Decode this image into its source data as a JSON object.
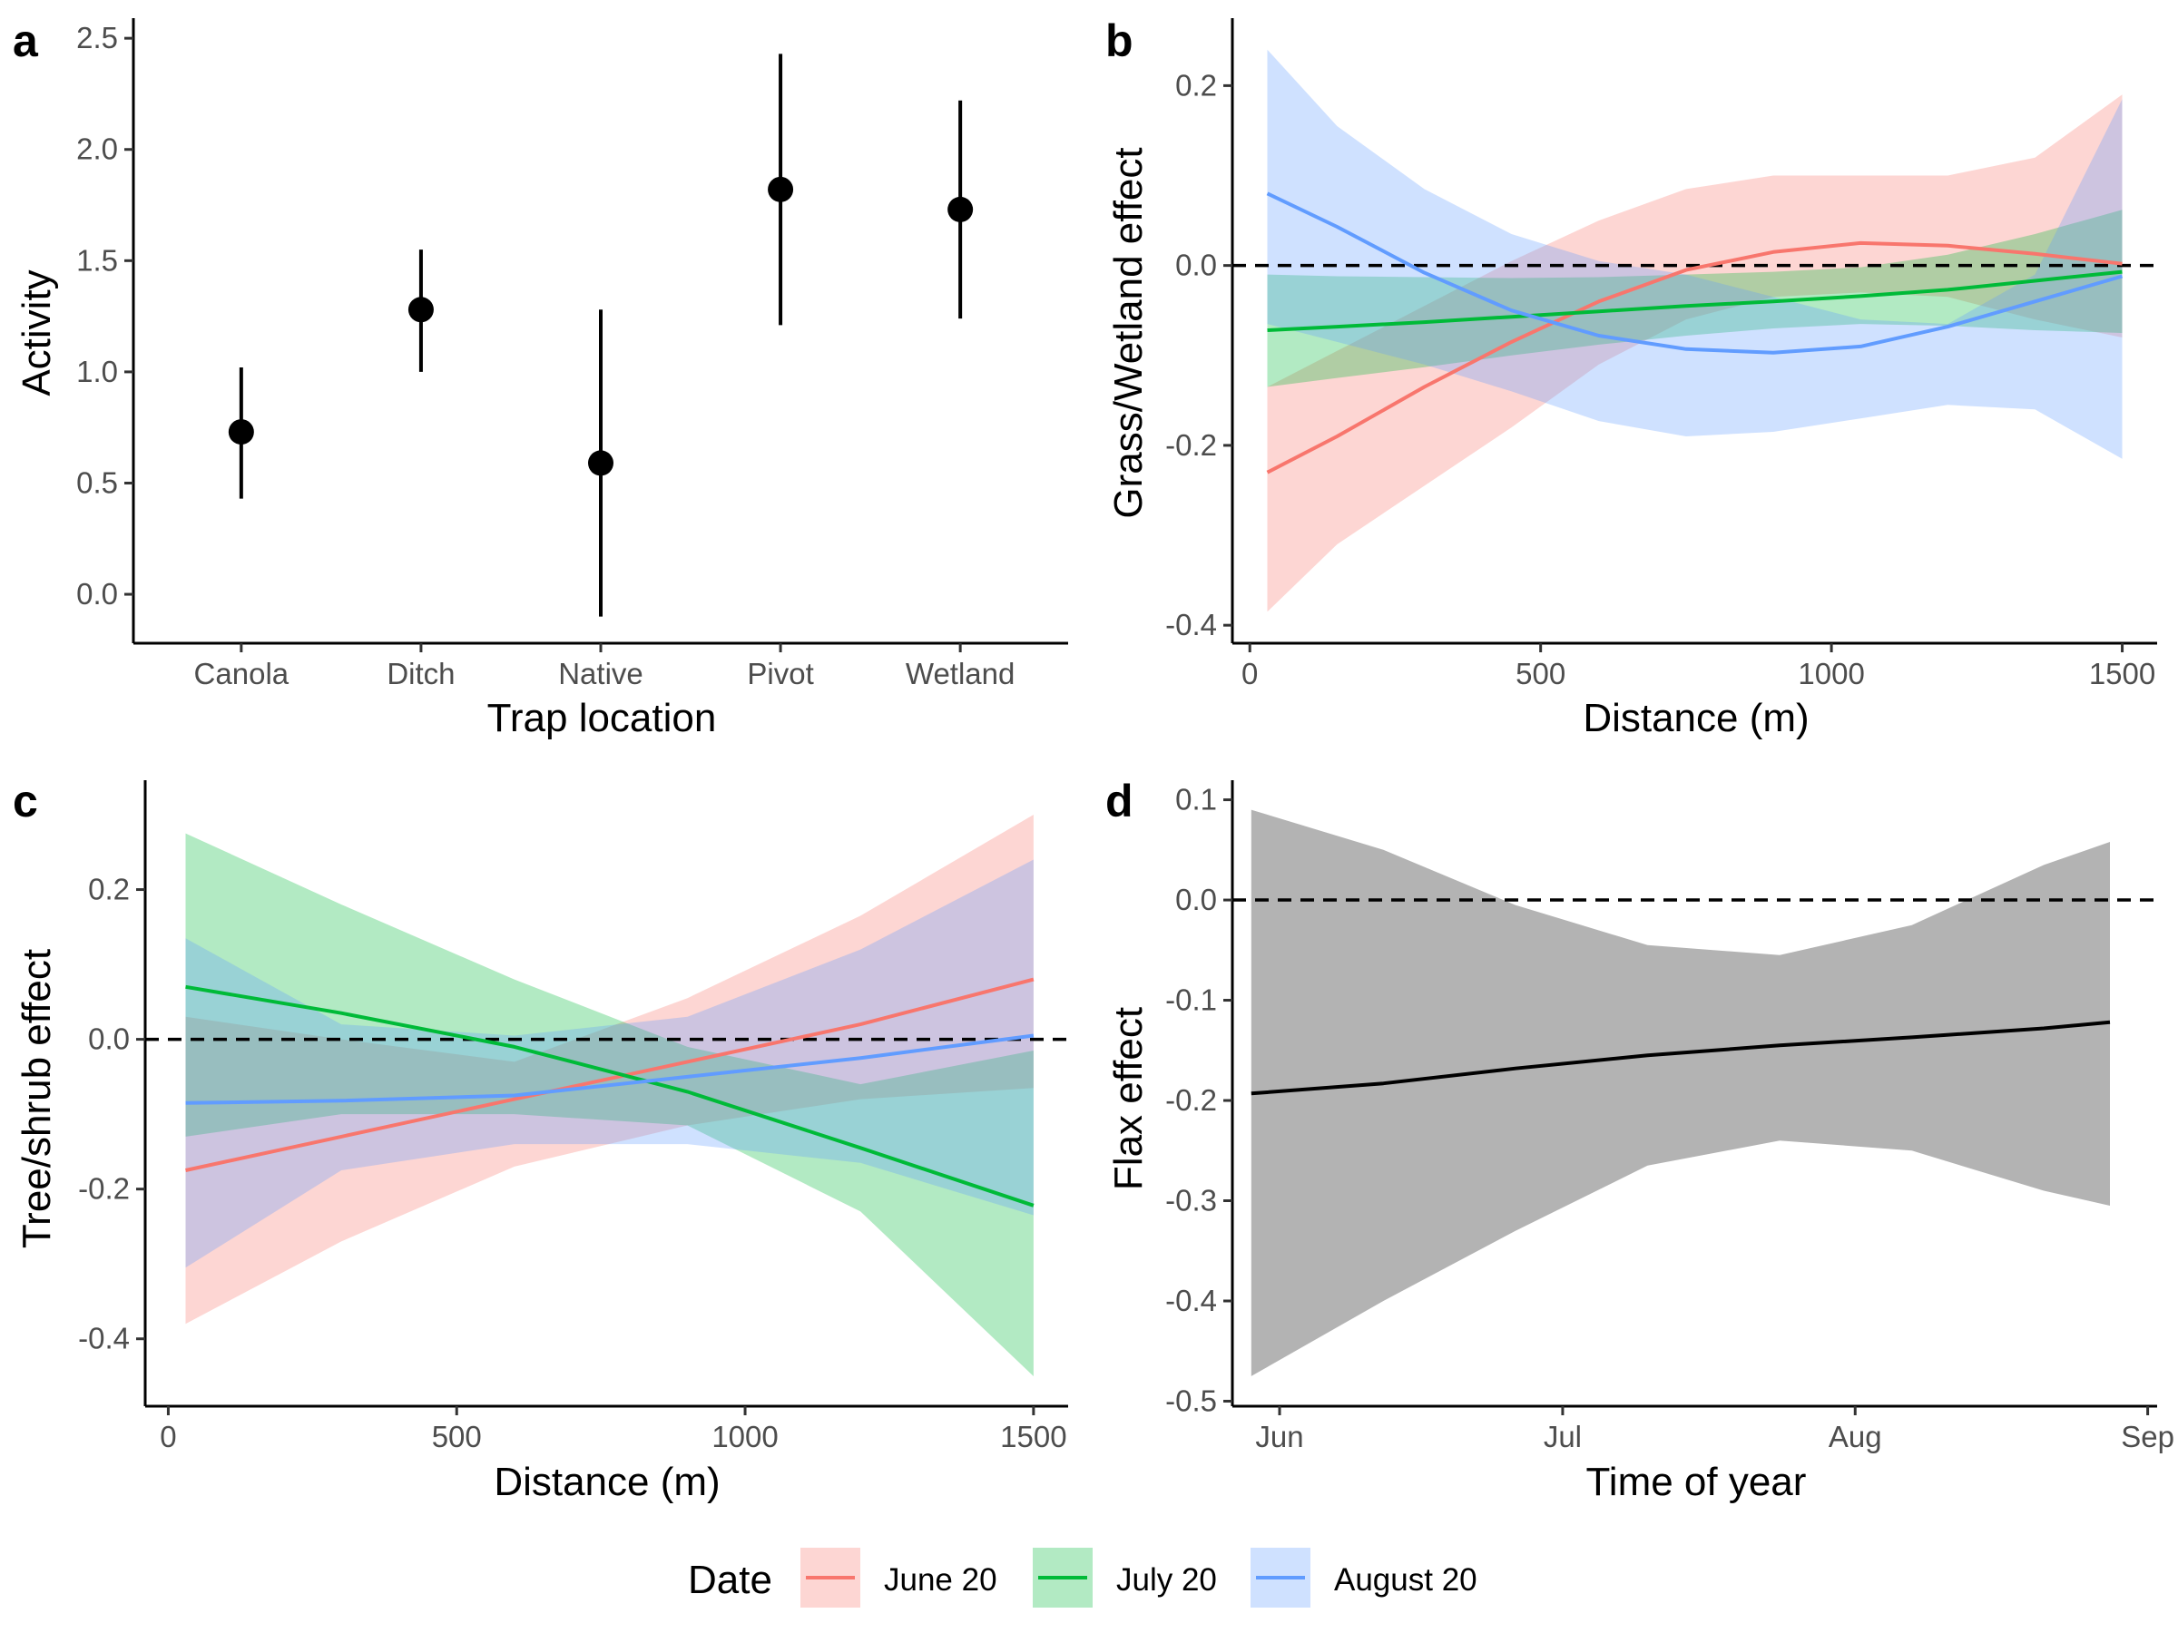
{
  "colors": {
    "june": "#F8766D",
    "july": "#00BA38",
    "august": "#619CFF",
    "flax_band": "#B3B3B3",
    "ink": "#000000",
    "tick_text": "#4D4D4D"
  },
  "legend": {
    "title": "Date",
    "position": "bottom",
    "items": [
      {
        "key": "june",
        "label": "June 20"
      },
      {
        "key": "july",
        "label": "July 20"
      },
      {
        "key": "august",
        "label": "August 20"
      }
    ]
  },
  "panels": {
    "a": {
      "tag": "a",
      "xlabel": "Trap location",
      "ylabel": "Activity"
    },
    "b": {
      "tag": "b",
      "xlabel": "Distance (m)",
      "ylabel": "Grass/Wetland effect"
    },
    "c": {
      "tag": "c",
      "xlabel": "Distance (m)",
      "ylabel": "Tree/shrub effect"
    },
    "d": {
      "tag": "d",
      "xlabel": "Time of year",
      "ylabel": "Flax effect"
    }
  },
  "chart_data": [
    {
      "panel": "a",
      "type": "scatter",
      "error_bars": true,
      "categories": [
        "Canola",
        "Ditch",
        "Native",
        "Pivot",
        "Wetland"
      ],
      "values": [
        0.73,
        1.28,
        0.59,
        1.82,
        1.73
      ],
      "lower": [
        0.43,
        1.0,
        -0.1,
        1.21,
        1.24
      ],
      "upper": [
        1.02,
        1.55,
        1.28,
        2.43,
        2.22
      ],
      "ylim": [
        -0.22,
        2.57
      ],
      "yticks": [
        0,
        0.5,
        1,
        1.5,
        2,
        2.5
      ],
      "ytick_labels": [
        "0.0",
        "0.5",
        "1.0",
        "1.5",
        "2.0",
        "2.5"
      ],
      "xlabel": "Trap location",
      "ylabel": "Activity"
    },
    {
      "panel": "b",
      "type": "line",
      "ribbons": true,
      "x": [
        30,
        150,
        300,
        450,
        600,
        750,
        900,
        1050,
        1200,
        1350,
        1500
      ],
      "reference_line": 0,
      "series": [
        {
          "key": "june",
          "name": "June 20",
          "values": [
            -0.23,
            -0.19,
            -0.135,
            -0.085,
            -0.04,
            -0.005,
            0.015,
            0.025,
            0.022,
            0.013,
            0.002
          ],
          "lower": [
            -0.385,
            -0.31,
            -0.245,
            -0.18,
            -0.11,
            -0.06,
            -0.035,
            -0.03,
            -0.035,
            -0.06,
            -0.08
          ],
          "upper": [
            -0.135,
            -0.095,
            -0.045,
            0.005,
            0.05,
            0.085,
            0.1,
            0.1,
            0.1,
            0.12,
            0.19
          ]
        },
        {
          "key": "july",
          "name": "July 20",
          "values": [
            -0.072,
            -0.068,
            -0.063,
            -0.057,
            -0.051,
            -0.045,
            -0.04,
            -0.034,
            -0.027,
            -0.017,
            -0.007
          ],
          "lower": [
            -0.135,
            -0.125,
            -0.113,
            -0.1,
            -0.088,
            -0.078,
            -0.07,
            -0.065,
            -0.067,
            -0.072,
            -0.075
          ],
          "upper": [
            -0.01,
            -0.012,
            -0.013,
            -0.014,
            -0.013,
            -0.01,
            -0.007,
            -0.002,
            0.012,
            0.035,
            0.062
          ]
        },
        {
          "key": "august",
          "name": "August 20",
          "values": [
            0.08,
            0.043,
            -0.008,
            -0.05,
            -0.078,
            -0.093,
            -0.097,
            -0.09,
            -0.068,
            -0.04,
            -0.012
          ],
          "lower": [
            -0.065,
            -0.085,
            -0.11,
            -0.14,
            -0.173,
            -0.19,
            -0.185,
            -0.17,
            -0.155,
            -0.16,
            -0.215
          ],
          "upper": [
            0.24,
            0.155,
            0.085,
            0.035,
            0.005,
            -0.01,
            -0.035,
            -0.06,
            -0.065,
            -0.01,
            0.185
          ]
        }
      ],
      "xlim": [
        -30,
        1560
      ],
      "ylim": [
        -0.42,
        0.27
      ],
      "xticks": [
        0,
        500,
        1000,
        1500
      ],
      "yticks": [
        -0.4,
        -0.2,
        0,
        0.2
      ],
      "ytick_labels": [
        "-0.4",
        "-0.2",
        "0.0",
        "0.2"
      ],
      "xlabel": "Distance (m)",
      "ylabel": "Grass/Wetland effect"
    },
    {
      "panel": "c",
      "type": "line",
      "ribbons": true,
      "x": [
        30,
        300,
        600,
        900,
        1200,
        1500
      ],
      "reference_line": 0,
      "series": [
        {
          "key": "june",
          "name": "June 20",
          "values": [
            -0.175,
            -0.13,
            -0.08,
            -0.03,
            0.02,
            0.08
          ],
          "lower": [
            -0.38,
            -0.27,
            -0.17,
            -0.115,
            -0.08,
            -0.065
          ],
          "upper": [
            0.03,
            0.0,
            -0.03,
            0.055,
            0.165,
            0.3
          ]
        },
        {
          "key": "july",
          "name": "July 20",
          "values": [
            0.07,
            0.035,
            -0.01,
            -0.07,
            -0.145,
            -0.222
          ],
          "lower": [
            -0.13,
            -0.1,
            -0.1,
            -0.115,
            -0.23,
            -0.45
          ],
          "upper": [
            0.275,
            0.18,
            0.08,
            -0.01,
            -0.06,
            -0.015
          ]
        },
        {
          "key": "august",
          "name": "August 20",
          "values": [
            -0.085,
            -0.082,
            -0.075,
            -0.05,
            -0.025,
            0.005
          ],
          "lower": [
            -0.305,
            -0.175,
            -0.14,
            -0.14,
            -0.165,
            -0.235
          ],
          "upper": [
            0.135,
            0.02,
            0.005,
            0.03,
            0.12,
            0.24
          ]
        }
      ],
      "xlim": [
        -40,
        1560
      ],
      "ylim": [
        -0.49,
        0.34
      ],
      "xticks": [
        0,
        500,
        1000,
        1500
      ],
      "yticks": [
        -0.4,
        -0.2,
        0,
        0.2
      ],
      "ytick_labels": [
        "-0.4",
        "-0.2",
        "0.0",
        "0.2"
      ],
      "xlabel": "Distance (m)",
      "ylabel": "Tree/shrub effect"
    },
    {
      "panel": "d",
      "type": "line",
      "ribbons": true,
      "x": [
        "05-29",
        "06-12",
        "06-26",
        "07-10",
        "07-24",
        "08-07",
        "08-21",
        "08-28"
      ],
      "reference_line": 0,
      "series": [
        {
          "key": "flax",
          "values": [
            -0.193,
            -0.183,
            -0.168,
            -0.155,
            -0.145,
            -0.137,
            -0.128,
            -0.122
          ],
          "lower": [
            -0.475,
            -0.4,
            -0.33,
            -0.265,
            -0.24,
            -0.25,
            -0.29,
            -0.305
          ],
          "upper": [
            0.09,
            0.05,
            -0.005,
            -0.045,
            -0.055,
            -0.025,
            0.035,
            0.058
          ]
        }
      ],
      "xlim": [
        "05-27",
        "09-02"
      ],
      "xticks": [
        "06-01",
        "07-01",
        "08-01",
        "09-01"
      ],
      "xtick_labels": [
        "Jun",
        "Jul",
        "Aug",
        "Sep"
      ],
      "ylim": [
        -0.505,
        0.115
      ],
      "yticks": [
        -0.5,
        -0.4,
        -0.3,
        -0.2,
        -0.1,
        0,
        0.1
      ],
      "ytick_labels": [
        "-0.5",
        "-0.4",
        "-0.3",
        "-0.2",
        "-0.1",
        "0.0",
        "0.1"
      ],
      "xlabel": "Time of year",
      "ylabel": "Flax effect"
    }
  ]
}
